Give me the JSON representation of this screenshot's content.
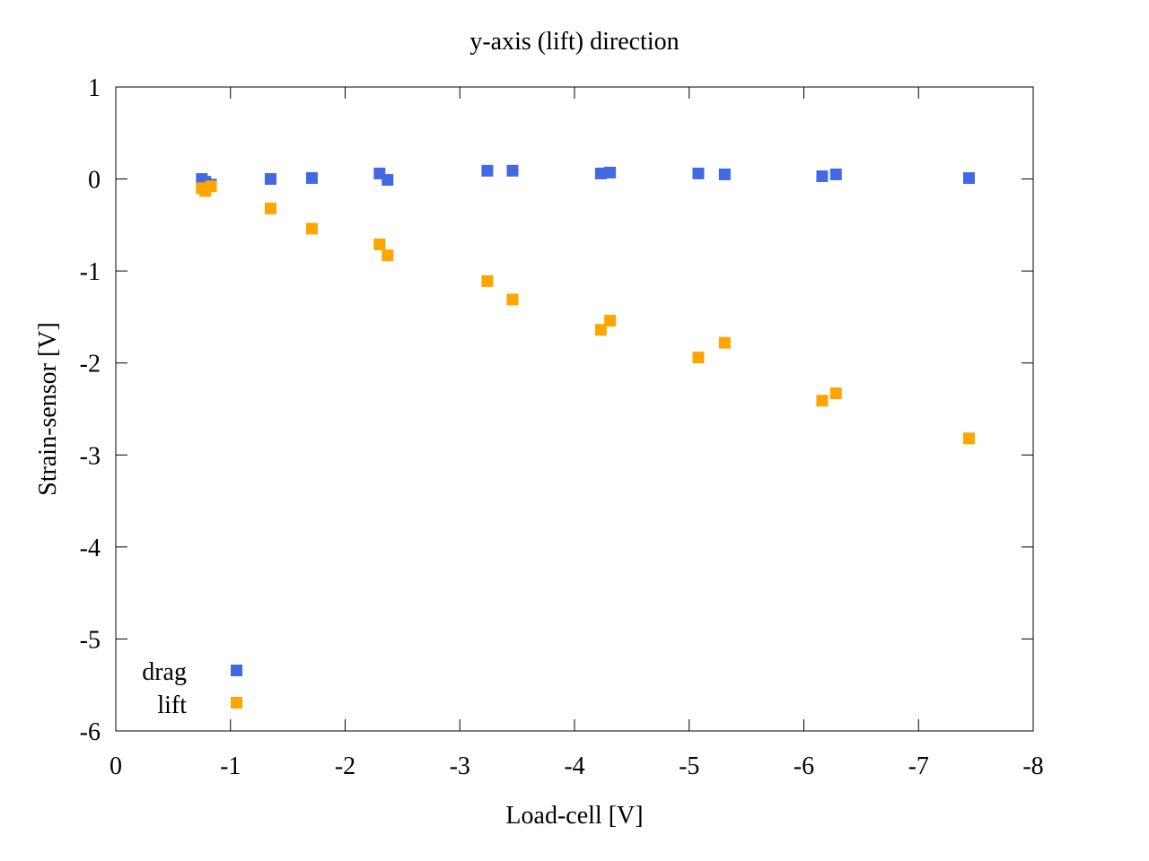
{
  "chart_data": {
    "type": "scatter",
    "title": "y-axis (lift) direction",
    "xlabel": "Load-cell [V]",
    "ylabel": "Strain-sensor [V]",
    "xlim": [
      0,
      -8
    ],
    "ylim": [
      -6,
      1
    ],
    "x_ticks": [
      0,
      -1,
      -2,
      -3,
      -4,
      -5,
      -6,
      -7,
      -8
    ],
    "x_tick_labels": [
      "0",
      "-1",
      "-2",
      "-3",
      "-4",
      "-5",
      "-6",
      "-7",
      "-8"
    ],
    "y_ticks": [
      1,
      0,
      -1,
      -2,
      -3,
      -4,
      -5,
      -6
    ],
    "y_tick_labels": [
      "1",
      "0",
      "-1",
      "-2",
      "-3",
      "-4",
      "-5",
      "-6"
    ],
    "grid": false,
    "legend_position": "bottom-left",
    "series": [
      {
        "name": "drag",
        "color": "#4169e1",
        "marker": "square",
        "points": [
          [
            -0.75,
            0.0
          ],
          [
            -0.78,
            -0.03
          ],
          [
            -0.83,
            -0.06
          ],
          [
            -1.35,
            0.0
          ],
          [
            -1.71,
            0.01
          ],
          [
            -2.3,
            0.06
          ],
          [
            -2.37,
            -0.01
          ],
          [
            -3.24,
            0.09
          ],
          [
            -3.46,
            0.09
          ],
          [
            -4.23,
            0.06
          ],
          [
            -4.31,
            0.07
          ],
          [
            -5.08,
            0.06
          ],
          [
            -5.31,
            0.05
          ],
          [
            -6.16,
            0.03
          ],
          [
            -6.28,
            0.05
          ],
          [
            -7.44,
            0.01
          ]
        ]
      },
      {
        "name": "lift",
        "color": "#ffa500",
        "marker": "square",
        "points": [
          [
            -0.75,
            -0.1
          ],
          [
            -0.78,
            -0.13
          ],
          [
            -0.83,
            -0.08
          ],
          [
            -1.35,
            -0.32
          ],
          [
            -1.71,
            -0.54
          ],
          [
            -2.3,
            -0.71
          ],
          [
            -2.37,
            -0.83
          ],
          [
            -3.24,
            -1.11
          ],
          [
            -3.46,
            -1.31
          ],
          [
            -4.23,
            -1.64
          ],
          [
            -4.31,
            -1.54
          ],
          [
            -5.08,
            -1.94
          ],
          [
            -5.31,
            -1.78
          ],
          [
            -6.16,
            -2.41
          ],
          [
            -6.28,
            -2.33
          ],
          [
            -7.44,
            -2.82
          ]
        ]
      }
    ]
  }
}
